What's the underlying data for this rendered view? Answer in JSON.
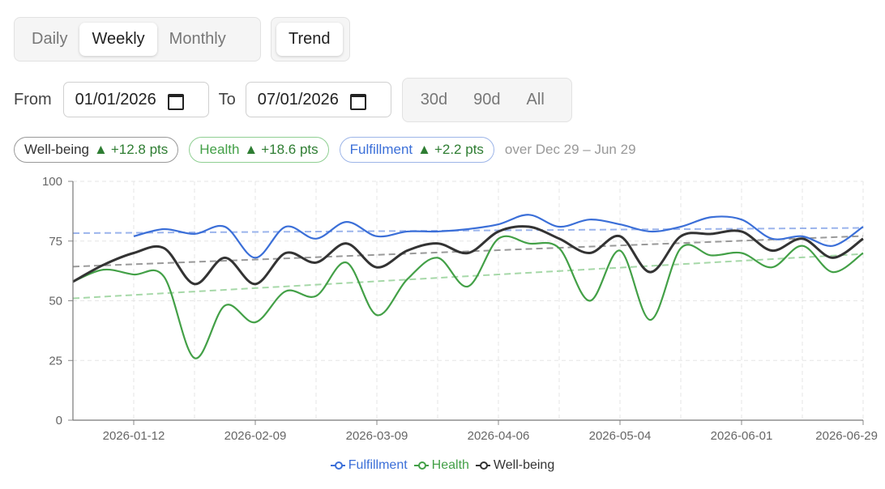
{
  "granularity": {
    "options": [
      "Daily",
      "Weekly",
      "Monthly"
    ],
    "selected": "Weekly"
  },
  "trend_toggle": {
    "label": "Trend",
    "active": true
  },
  "date_range": {
    "from_label": "From",
    "from_value": "01/01/2026",
    "to_label": "To",
    "to_value": "07/01/2026",
    "presets": [
      "30d",
      "90d",
      "All"
    ]
  },
  "summary": {
    "pills": [
      {
        "name": "Well-being",
        "arrow": "▲",
        "delta": "+12.8 pts",
        "color": "#333333"
      },
      {
        "name": "Health",
        "arrow": "▲",
        "delta": "+18.6 pts",
        "color": "#43a047"
      },
      {
        "name": "Fulfillment",
        "arrow": "▲",
        "delta": "+2.2 pts",
        "color": "#3b6fd8"
      }
    ],
    "period": "over Dec 29 – Jun 29"
  },
  "chart_data": {
    "type": "line",
    "ylim": [
      0,
      100
    ],
    "yticks": [
      "0",
      "25",
      "50",
      "75",
      "100"
    ],
    "xtick_labels": [
      "2026-01-12",
      "2026-02-09",
      "2026-03-09",
      "2026-04-06",
      "2026-05-04",
      "2026-06-01",
      "2026-06-29"
    ],
    "x": [
      "2025-12-29",
      "2026-01-05",
      "2026-01-12",
      "2026-01-19",
      "2026-01-26",
      "2026-02-02",
      "2026-02-09",
      "2026-02-16",
      "2026-02-23",
      "2026-03-02",
      "2026-03-09",
      "2026-03-16",
      "2026-03-23",
      "2026-03-30",
      "2026-04-06",
      "2026-04-13",
      "2026-04-20",
      "2026-04-27",
      "2026-05-04",
      "2026-05-11",
      "2026-05-18",
      "2026-05-25",
      "2026-06-01",
      "2026-06-08",
      "2026-06-15",
      "2026-06-22",
      "2026-06-29"
    ],
    "series": [
      {
        "name": "Fulfillment",
        "color": "#3b6fd8",
        "values": [
          null,
          null,
          77,
          80,
          78,
          81,
          68,
          81,
          76,
          83,
          77,
          79,
          79,
          80,
          82,
          86,
          81,
          84,
          82,
          79,
          81,
          85,
          84,
          76,
          77,
          73,
          81
        ],
        "trend": [
          78.3,
          80.5
        ]
      },
      {
        "name": "Health",
        "color": "#43a047",
        "values": [
          58,
          63,
          61,
          60,
          26,
          48,
          41,
          54,
          52,
          66,
          44,
          59,
          68,
          56,
          76,
          74,
          72,
          50,
          71,
          42,
          72,
          69,
          70,
          64,
          73,
          62,
          70
        ],
        "trend": [
          51,
          69.6
        ]
      },
      {
        "name": "Well-being",
        "color": "#333333",
        "values": [
          58,
          65,
          70,
          72,
          57,
          68,
          57,
          70,
          66,
          74,
          64,
          71,
          74,
          70,
          79,
          81,
          76,
          70,
          77,
          62,
          77,
          78,
          79,
          71,
          76,
          68,
          76
        ],
        "trend": [
          64.3,
          77.1
        ]
      }
    ],
    "legend_position": "bottom"
  }
}
